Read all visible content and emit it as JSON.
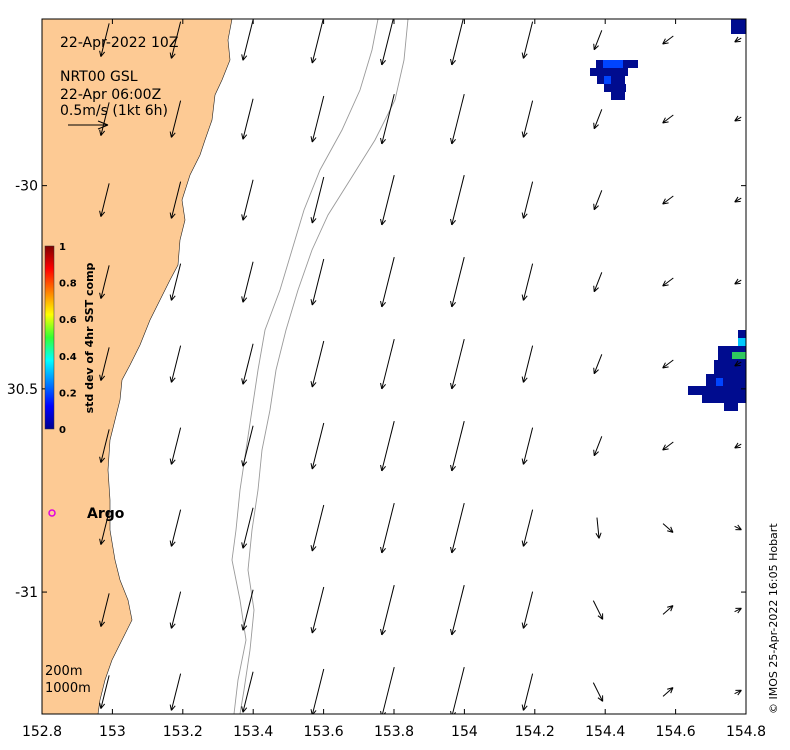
{
  "panel": {
    "date_label": "22-Apr-2022 10Z",
    "product_label": "NRT00 GSL",
    "product_time": "22-Apr 06:00Z",
    "scale_label": "0.5m/s (1kt 6h)",
    "credit": "© IMOS 25-Apr-2022 16:05 Hobart"
  },
  "axes": {
    "xlim": [
      152.8,
      154.8
    ],
    "ylim": [
      -31.3,
      -29.59
    ],
    "xticks": [
      "152.8",
      "153",
      "153.2",
      "153.4",
      "153.6",
      "153.8",
      "154",
      "154.2",
      "154.4",
      "154.6",
      "154.8"
    ],
    "yticks": [
      {
        "value": -30.0,
        "label": "-30"
      },
      {
        "value": -30.5,
        "label": "30.5"
      },
      {
        "value": -31.0,
        "label": "-31"
      }
    ]
  },
  "colorbar": {
    "title": "std dev of 4hr SST comp",
    "ticks": [
      "1",
      "0.8",
      "0.6",
      "0.4",
      "0.2",
      "0"
    ]
  },
  "argo": {
    "label": "Argo",
    "lon": 152.87,
    "lat": -30.81
  },
  "depth_legend": [
    "200m",
    "1000m"
  ],
  "colors": {
    "land": "#fdca94",
    "argo": "#e000e0",
    "sst_low": "#000c8f",
    "sst_mid": "#0044ff",
    "sst_high": "#00c8ff",
    "sst_green": "#2fc85f"
  }
}
